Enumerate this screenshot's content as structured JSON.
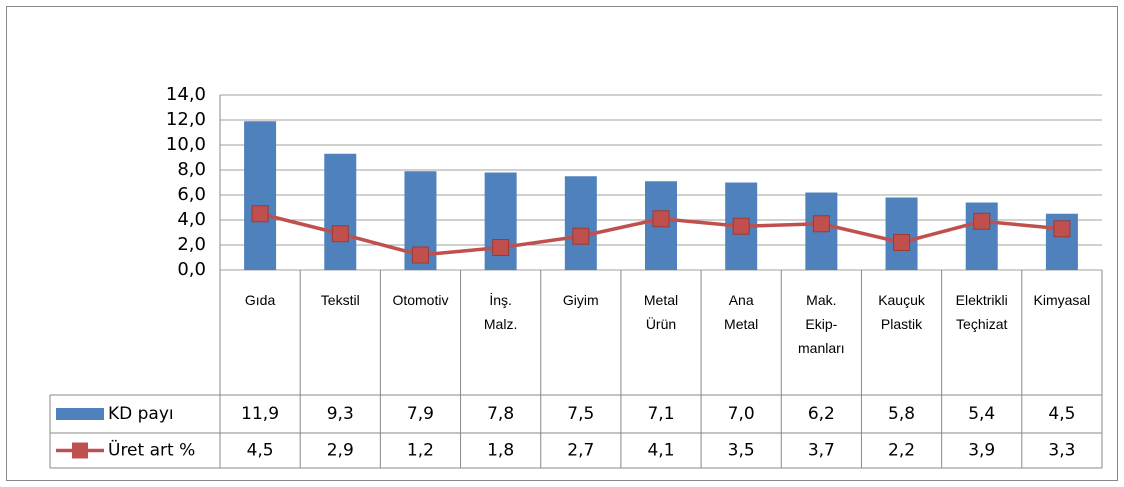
{
  "chart_data": {
    "type": "bar-line",
    "categories": [
      "Gıda",
      "Tekstil",
      "Otomotiv",
      "İnş.\nMalz.",
      "Giyim",
      "Metal\nÜrün",
      "Ana\nMetal",
      "Mak.\nEkip-\nmanları",
      "Kauçuk\nPlastik",
      "Elektrikli\nTeçhizat",
      "Kimyasal"
    ],
    "series": [
      {
        "name": "KD payı",
        "color": "#4f81bd",
        "type": "bar",
        "values": [
          11.9,
          9.3,
          7.9,
          7.8,
          7.5,
          7.1,
          7.0,
          6.2,
          5.8,
          5.4,
          4.5
        ],
        "value_labels": [
          "11,9",
          "9,3",
          "7,9",
          "7,8",
          "7,5",
          "7,1",
          "7,0",
          "6,2",
          "5,8",
          "5,4",
          "4,5"
        ]
      },
      {
        "name": "Üret art %",
        "color": "#c0504d",
        "type": "line",
        "values": [
          4.5,
          2.9,
          1.2,
          1.8,
          2.7,
          4.1,
          3.5,
          3.7,
          2.2,
          3.9,
          3.3
        ],
        "value_labels": [
          "4,5",
          "2,9",
          "1,2",
          "1,8",
          "2,7",
          "4,1",
          "3,5",
          "3,7",
          "2,2",
          "3,9",
          "3,3"
        ]
      }
    ],
    "ylim": [
      0,
      14
    ],
    "yticks": [
      {
        "value": 0,
        "label": "0,0"
      },
      {
        "value": 2,
        "label": "2,0"
      },
      {
        "value": 4,
        "label": "4,0"
      },
      {
        "value": 6,
        "label": "6,0"
      },
      {
        "value": 8,
        "label": "8,0"
      },
      {
        "value": 10,
        "label": "10,0"
      },
      {
        "value": 12,
        "label": "12,0"
      },
      {
        "value": 14,
        "label": "14,0"
      }
    ],
    "grid": true,
    "data_table": true
  }
}
